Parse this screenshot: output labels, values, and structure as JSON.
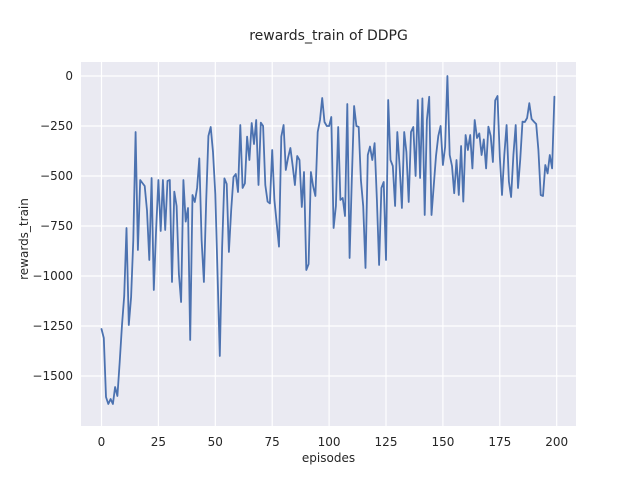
{
  "chart_data": {
    "type": "line",
    "title": "rewards_train of DDPG",
    "xlabel": "episodes",
    "ylabel": "rewards_train",
    "x_ticks": [
      0,
      25,
      50,
      75,
      100,
      125,
      150,
      175,
      200
    ],
    "y_ticks": [
      0,
      -250,
      -500,
      -750,
      -1000,
      -1250,
      -1500
    ],
    "xlim": [
      -9,
      208.5
    ],
    "ylim": [
      -1750,
      70
    ],
    "grid": true,
    "legend": false,
    "axes_background": "#EAEAF2",
    "grid_color": "#FFFFFF",
    "text_color": "#262626",
    "line_color": "#4C72B0",
    "series": [
      {
        "name": "rewards_train",
        "x_start": 0,
        "x_step": 1,
        "values": [
          -1265,
          -1310,
          -1605,
          -1640,
          -1615,
          -1640,
          -1555,
          -1600,
          -1430,
          -1245,
          -1100,
          -760,
          -1245,
          -1105,
          -820,
          -280,
          -870,
          -520,
          -535,
          -550,
          -672,
          -920,
          -510,
          -1070,
          -770,
          -520,
          -775,
          -520,
          -770,
          -525,
          -520,
          -1030,
          -578,
          -650,
          -990,
          -1130,
          -520,
          -728,
          -660,
          -1320,
          -595,
          -630,
          -560,
          -412,
          -820,
          -1030,
          -623,
          -300,
          -255,
          -380,
          -590,
          -1000,
          -1400,
          -860,
          -512,
          -540,
          -880,
          -670,
          -505,
          -490,
          -580,
          -245,
          -560,
          -537,
          -303,
          -420,
          -235,
          -340,
          -220,
          -545,
          -233,
          -250,
          -545,
          -628,
          -637,
          -370,
          -620,
          -737,
          -853,
          -303,
          -245,
          -470,
          -408,
          -360,
          -450,
          -545,
          -400,
          -420,
          -655,
          -480,
          -970,
          -940,
          -480,
          -550,
          -600,
          -280,
          -220,
          -110,
          -230,
          -250,
          -250,
          -205,
          -760,
          -650,
          -255,
          -620,
          -610,
          -700,
          -140,
          -910,
          -520,
          -150,
          -250,
          -255,
          -520,
          -650,
          -960,
          -395,
          -353,
          -420,
          -336,
          -620,
          -945,
          -560,
          -530,
          -920,
          -120,
          -420,
          -450,
          -650,
          -280,
          -450,
          -660,
          -280,
          -380,
          -630,
          -280,
          -255,
          -500,
          -120,
          -510,
          -112,
          -695,
          -220,
          -104,
          -695,
          -545,
          -400,
          -300,
          -250,
          -445,
          -355,
          0,
          -395,
          -450,
          -586,
          -420,
          -595,
          -350,
          -628,
          -295,
          -370,
          -295,
          -462,
          -220,
          -310,
          -287,
          -395,
          -317,
          -462,
          -253,
          -300,
          -430,
          -122,
          -100,
          -403,
          -595,
          -395,
          -245,
          -528,
          -605,
          -395,
          -245,
          -560,
          -420,
          -228,
          -230,
          -210,
          -136,
          -215,
          -228,
          -240,
          -370,
          -595,
          -600,
          -445,
          -487,
          -395,
          -462,
          -103
        ]
      }
    ]
  }
}
